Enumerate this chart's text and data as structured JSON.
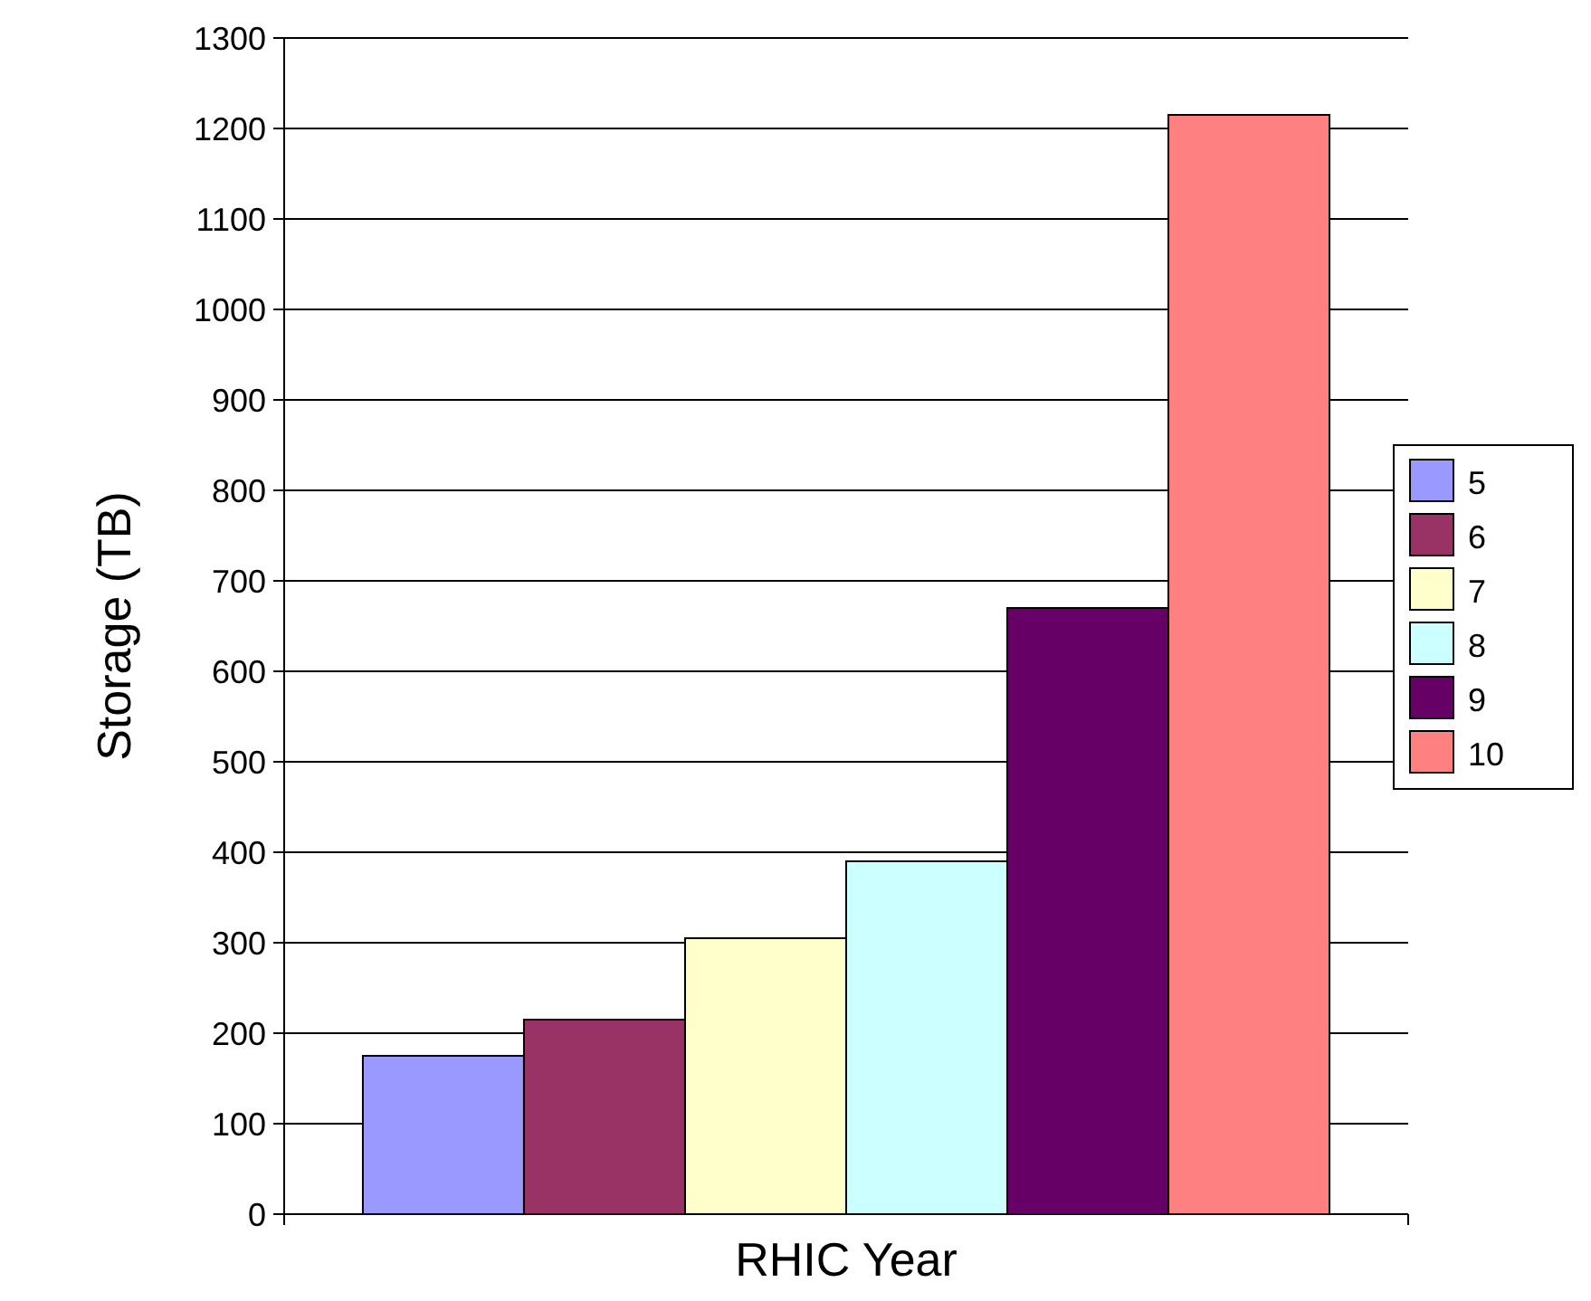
{
  "chart_data": {
    "type": "bar",
    "xlabel": "RHIC Year",
    "ylabel": "Storage (TB)",
    "categories": [
      null
    ],
    "series": [
      {
        "name": "5",
        "color": "#9999ff",
        "values": [
          175
        ]
      },
      {
        "name": "6",
        "color": "#993366",
        "values": [
          215
        ]
      },
      {
        "name": "7",
        "color": "#ffffcc",
        "values": [
          305
        ]
      },
      {
        "name": "8",
        "color": "#ccffff",
        "values": [
          390
        ]
      },
      {
        "name": "9",
        "color": "#660066",
        "values": [
          670
        ]
      },
      {
        "name": "10",
        "color": "#ff8080",
        "values": [
          1215
        ]
      }
    ],
    "ylim": [
      0,
      1300
    ],
    "yticks": [
      0,
      100,
      200,
      300,
      400,
      500,
      600,
      700,
      800,
      900,
      1000,
      1100,
      1200,
      1300
    ],
    "grid": "y",
    "legend": "right"
  }
}
